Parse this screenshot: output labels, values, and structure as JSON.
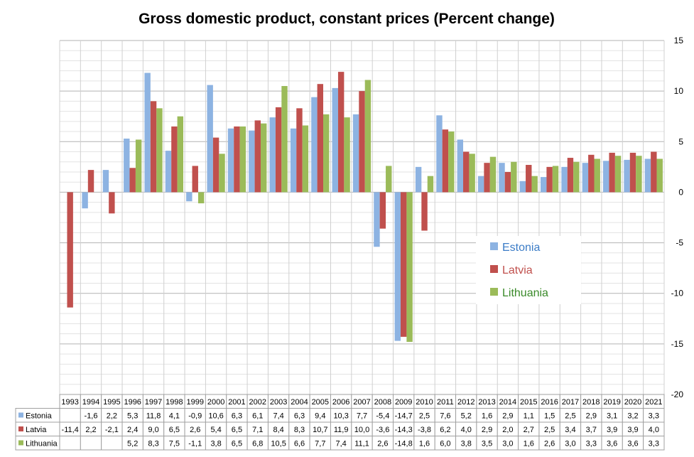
{
  "chart_data": {
    "type": "bar",
    "title": "Gross domestic product, constant prices (Percent change)",
    "xlabel": "",
    "ylabel": "",
    "ylim": [
      -20,
      15
    ],
    "y_ticks": [
      -20,
      -15,
      -10,
      -5,
      0,
      5,
      10,
      15
    ],
    "grid": true,
    "legend_position": "right-middle",
    "categories": [
      "1993",
      "1994",
      "1995",
      "1996",
      "1997",
      "1998",
      "1999",
      "2000",
      "2001",
      "2002",
      "2003",
      "2004",
      "2005",
      "2006",
      "2007",
      "2008",
      "2009",
      "2010",
      "2011",
      "2012",
      "2013",
      "2014",
      "2015",
      "2016",
      "2017",
      "2018",
      "2019",
      "2020",
      "2021"
    ],
    "series": [
      {
        "name": "Estonia",
        "color": "#8db3e2",
        "values": [
          null,
          -1.6,
          2.2,
          5.3,
          11.8,
          4.1,
          -0.9,
          10.6,
          6.3,
          6.1,
          7.4,
          6.3,
          9.4,
          10.3,
          7.7,
          -5.4,
          -14.7,
          2.5,
          7.6,
          5.2,
          1.6,
          2.9,
          1.1,
          1.5,
          2.5,
          2.9,
          3.1,
          3.2,
          3.3
        ],
        "labels": [
          "",
          "-1,6",
          "2,2",
          "5,3",
          "11,8",
          "4,1",
          "-0,9",
          "10,6",
          "6,3",
          "6,1",
          "7,4",
          "6,3",
          "9,4",
          "10,3",
          "7,7",
          "-5,4",
          "-14,7",
          "2,5",
          "7,6",
          "5,2",
          "1,6",
          "2,9",
          "1,1",
          "1,5",
          "2,5",
          "2,9",
          "3,1",
          "3,2",
          "3,3"
        ]
      },
      {
        "name": "Latvia",
        "color": "#c0504d",
        "values": [
          -11.4,
          2.2,
          -2.1,
          2.4,
          9.0,
          6.5,
          2.6,
          5.4,
          6.5,
          7.1,
          8.4,
          8.3,
          10.7,
          11.9,
          10.0,
          -3.6,
          -14.3,
          -3.8,
          6.2,
          4.0,
          2.9,
          2.0,
          2.7,
          2.5,
          3.4,
          3.7,
          3.9,
          3.9,
          4.0
        ],
        "labels": [
          "-11,4",
          "2,2",
          "-2,1",
          "2,4",
          "9,0",
          "6,5",
          "2,6",
          "5,4",
          "6,5",
          "7,1",
          "8,4",
          "8,3",
          "10,7",
          "11,9",
          "10,0",
          "-3,6",
          "-14,3",
          "-3,8",
          "6,2",
          "4,0",
          "2,9",
          "2,0",
          "2,7",
          "2,5",
          "3,4",
          "3,7",
          "3,9",
          "3,9",
          "4,0"
        ]
      },
      {
        "name": "Lithuania",
        "color": "#9bbb59",
        "values": [
          null,
          null,
          null,
          5.2,
          8.3,
          7.5,
          -1.1,
          3.8,
          6.5,
          6.8,
          10.5,
          6.6,
          7.7,
          7.4,
          11.1,
          2.6,
          -14.8,
          1.6,
          6.0,
          3.8,
          3.5,
          3.0,
          1.6,
          2.6,
          3.0,
          3.3,
          3.6,
          3.6,
          3.3
        ],
        "labels": [
          "",
          "",
          "",
          "5,2",
          "8,3",
          "7,5",
          "-1,1",
          "3,8",
          "6,5",
          "6,8",
          "10,5",
          "6,6",
          "7,7",
          "7,4",
          "11,1",
          "2,6",
          "-14,8",
          "1,6",
          "6,0",
          "3,8",
          "3,5",
          "3,0",
          "1,6",
          "2,6",
          "3,0",
          "3,3",
          "3,6",
          "3,6",
          "3,3"
        ]
      }
    ],
    "legend": {
      "colors": [
        "#3b7cc7",
        "#c0504d",
        "#3a8a2a"
      ]
    }
  }
}
